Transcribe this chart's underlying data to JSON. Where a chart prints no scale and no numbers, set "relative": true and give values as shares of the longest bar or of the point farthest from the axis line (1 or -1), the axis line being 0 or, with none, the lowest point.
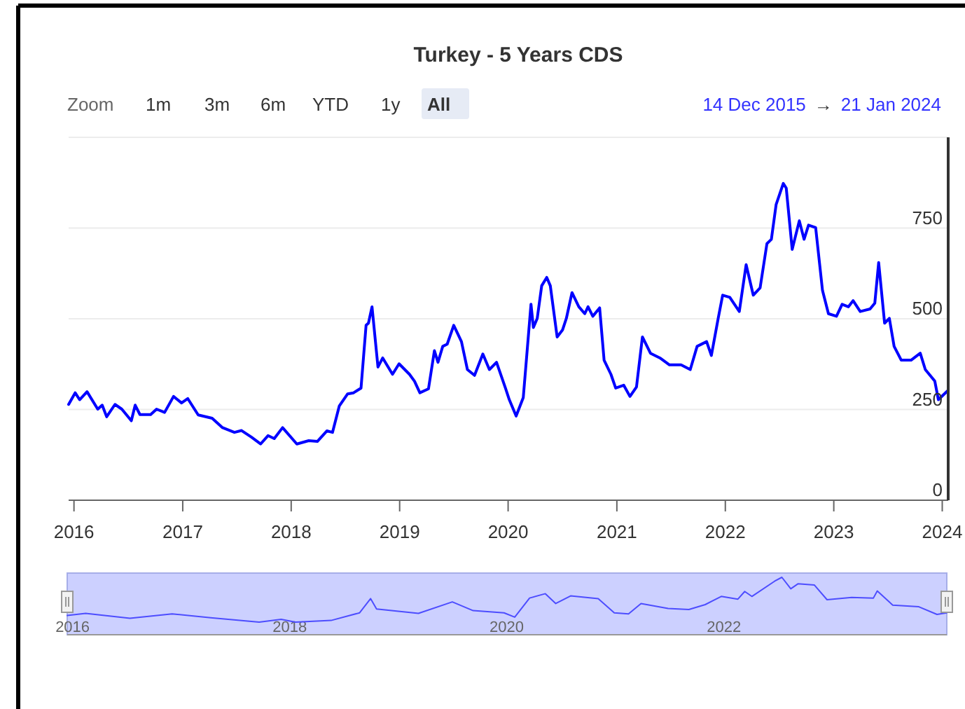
{
  "chart_data": [
    {
      "type": "line",
      "title": "Turkey - 5 Years CDS",
      "annotations": [
        "Zoom",
        "1m",
        "3m",
        "6m",
        "YTD",
        "1y",
        "All",
        "14 Dec 2015",
        "→",
        "21 Jan 2024"
      ],
      "x": [
        "2015-12-14",
        "2016-01-05",
        "2016-01-20",
        "2016-02-14",
        "2016-03-21",
        "2016-04-05",
        "2016-04-20",
        "2016-05-18",
        "2016-06-10",
        "2016-07-12",
        "2016-07-25",
        "2016-08-10",
        "2016-09-15",
        "2016-10-05",
        "2016-11-01",
        "2016-12-01",
        "2016-12-28",
        "2017-01-18",
        "2017-02-22",
        "2017-04-10",
        "2017-05-15",
        "2017-06-24",
        "2017-07-18",
        "2017-08-20",
        "2017-09-20",
        "2017-10-15",
        "2017-11-05",
        "2017-12-03",
        "2018-01-20",
        "2018-03-01",
        "2018-03-30",
        "2018-05-01",
        "2018-05-20",
        "2018-06-12",
        "2018-07-10",
        "2018-07-30",
        "2018-08-24",
        "2018-09-10",
        "2018-09-18",
        "2018-09-30",
        "2018-10-20",
        "2018-11-05",
        "2018-12-08",
        "2018-12-30",
        "2019-02-03",
        "2019-02-20",
        "2019-03-10",
        "2019-04-08",
        "2019-04-28",
        "2019-05-10",
        "2019-05-26",
        "2019-06-10",
        "2019-07-02",
        "2019-07-28",
        "2019-08-17",
        "2019-09-10",
        "2019-10-08",
        "2019-10-30",
        "2019-11-23",
        "2019-12-23",
        "2020-01-05",
        "2020-01-28",
        "2020-02-21",
        "2020-03-18",
        "2020-03-26",
        "2020-04-08",
        "2020-04-23",
        "2020-05-10",
        "2020-05-22",
        "2020-06-14",
        "2020-07-02",
        "2020-07-15",
        "2020-08-03",
        "2020-08-26",
        "2020-09-15",
        "2020-09-26",
        "2020-10-12",
        "2020-11-04",
        "2020-11-19",
        "2020-12-12",
        "2020-12-28",
        "2021-01-24",
        "2021-02-14",
        "2021-03-08",
        "2021-03-28",
        "2021-04-24",
        "2021-05-26",
        "2021-06-27",
        "2021-08-05",
        "2021-09-05",
        "2021-09-28",
        "2021-10-30",
        "2021-11-15",
        "2021-12-08",
        "2021-12-23",
        "2022-01-16",
        "2022-02-17",
        "2022-03-12",
        "2022-04-05",
        "2022-04-28",
        "2022-05-21",
        "2022-06-05",
        "2022-06-21",
        "2022-07-15",
        "2022-07-25",
        "2022-08-14",
        "2022-09-07",
        "2022-09-23",
        "2022-10-08",
        "2022-11-01",
        "2022-11-24",
        "2022-12-14",
        "2023-01-10",
        "2023-01-29",
        "2023-02-19",
        "2023-03-07",
        "2023-03-31",
        "2023-05-03",
        "2023-05-19",
        "2023-06-01",
        "2023-06-21",
        "2023-07-07",
        "2023-07-23",
        "2023-08-16",
        "2023-09-18",
        "2023-10-19",
        "2023-11-05",
        "2023-12-07",
        "2023-12-19",
        "2024-01-21"
      ],
      "series": [
        {
          "color": "#0000ff",
          "values": [
            264,
            296,
            277,
            299,
            251,
            262,
            230,
            264,
            251,
            219,
            262,
            236,
            236,
            251,
            242,
            286,
            268,
            280,
            235,
            226,
            200,
            187,
            192,
            174,
            155,
            178,
            170,
            200,
            155,
            164,
            162,
            191,
            187,
            260,
            293,
            296,
            309,
            482,
            488,
            533,
            367,
            392,
            347,
            376,
            347,
            328,
            296,
            307,
            412,
            380,
            424,
            430,
            482,
            437,
            360,
            344,
            403,
            360,
            380,
            309,
            277,
            232,
            283,
            540,
            476,
            501,
            591,
            614,
            591,
            450,
            469,
            501,
            572,
            533,
            514,
            533,
            507,
            530,
            386,
            347,
            309,
            317,
            286,
            312,
            450,
            405,
            392,
            373,
            373,
            360,
            424,
            437,
            399,
            501,
            565,
            559,
            520,
            649,
            565,
            585,
            707,
            719,
            815,
            873,
            860,
            691,
            770,
            719,
            758,
            751,
            578,
            514,
            507,
            540,
            533,
            550,
            520,
            527,
            543,
            655,
            488,
            501,
            424,
            386,
            386,
            405,
            360,
            328,
            277,
            303
          ]
        }
      ],
      "xlim": [
        "2015-12-14",
        "2024-01-21"
      ],
      "xticks": [
        "2016",
        "2017",
        "2018",
        "2019",
        "2020",
        "2021",
        "2022",
        "2023",
        "2024"
      ],
      "ylim": [
        0,
        1000
      ],
      "yticks": [
        0,
        250,
        500,
        750,
        {
          "value": 1000,
          "label": null
        }
      ],
      "grid": "y",
      "marker": "none",
      "line_style": "solid"
    },
    {
      "type": "line",
      "relative": true,
      "tick_labels": "x",
      "x": [
        "2015-12-14",
        "2016-02-14",
        "2016-07-12",
        "2016-12-01",
        "2017-04-10",
        "2017-09-20",
        "2017-12-03",
        "2018-01-20",
        "2018-05-20",
        "2018-08-24",
        "2018-09-30",
        "2018-10-20",
        "2019-03-10",
        "2019-07-02",
        "2019-09-10",
        "2019-12-23",
        "2020-01-28",
        "2020-03-18",
        "2020-05-10",
        "2020-06-14",
        "2020-08-03",
        "2020-11-04",
        "2020-12-28",
        "2021-02-14",
        "2021-03-28",
        "2021-06-27",
        "2021-09-05",
        "2021-10-30",
        "2021-12-23",
        "2022-02-17",
        "2022-03-12",
        "2022-04-05",
        "2022-06-21",
        "2022-07-15",
        "2022-08-14",
        "2022-09-07",
        "2022-11-01",
        "2022-12-14",
        "2023-03-07",
        "2023-05-19",
        "2023-06-01",
        "2023-07-23",
        "2023-10-19",
        "2023-12-19",
        "2024-01-21"
      ],
      "series": [
        {
          "color": "#4d4dff",
          "values": [
            0.3,
            0.34,
            0.25,
            0.33,
            0.26,
            0.18,
            0.23,
            0.18,
            0.21,
            0.35,
            0.61,
            0.42,
            0.34,
            0.55,
            0.39,
            0.35,
            0.27,
            0.62,
            0.7,
            0.52,
            0.66,
            0.61,
            0.35,
            0.33,
            0.52,
            0.43,
            0.41,
            0.5,
            0.65,
            0.6,
            0.74,
            0.65,
            0.93,
            1,
            0.79,
            0.88,
            0.86,
            0.59,
            0.63,
            0.62,
            0.75,
            0.49,
            0.46,
            0.32,
            0.35
          ]
        }
      ],
      "xlim": [
        "2015-12-14",
        "2024-01-21"
      ],
      "xticks": [
        "2016",
        "2018",
        "2020",
        "2022"
      ],
      "marker": "none",
      "line_style": "solid"
    }
  ]
}
